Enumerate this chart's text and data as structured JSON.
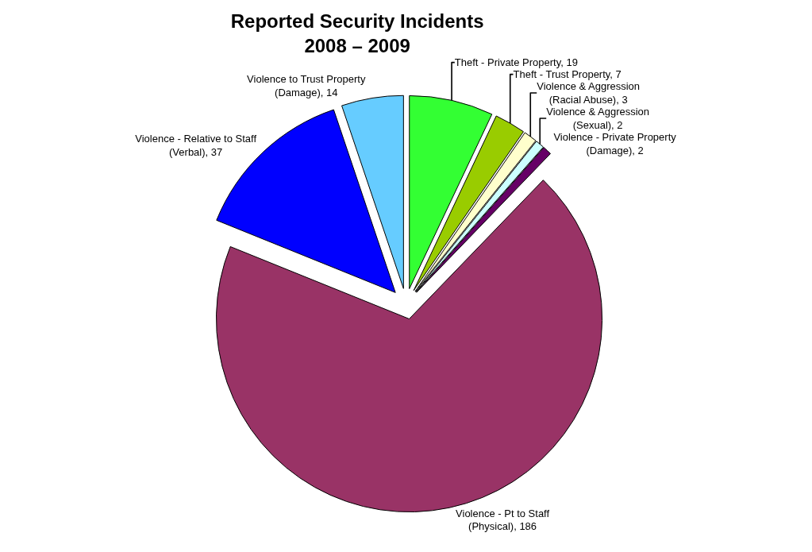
{
  "chart_data": {
    "type": "pie",
    "title": "Reported Security Incidents\n2008 – 2009",
    "categories": [
      "Theft - Private Property, 19",
      "Theft - Trust Property, 7",
      "Violence & Aggression (Racial Abuse), 3",
      "Violence & Aggression (Sexual), 2",
      "Violence - Private Property (Damage), 2",
      "Violence - Pt to Staff (Physical), 186",
      "Violence - Relative to Staff (Verbal), 37",
      "Violence to Trust Property (Damage), 14"
    ],
    "values": [
      19,
      7,
      3,
      2,
      2,
      186,
      37,
      14
    ],
    "colors": [
      "#33ff33",
      "#99cc00",
      "#ffffcc",
      "#ccffff",
      "#660066",
      "#993366",
      "#0000ff",
      "#66ccff"
    ],
    "legend": false
  }
}
